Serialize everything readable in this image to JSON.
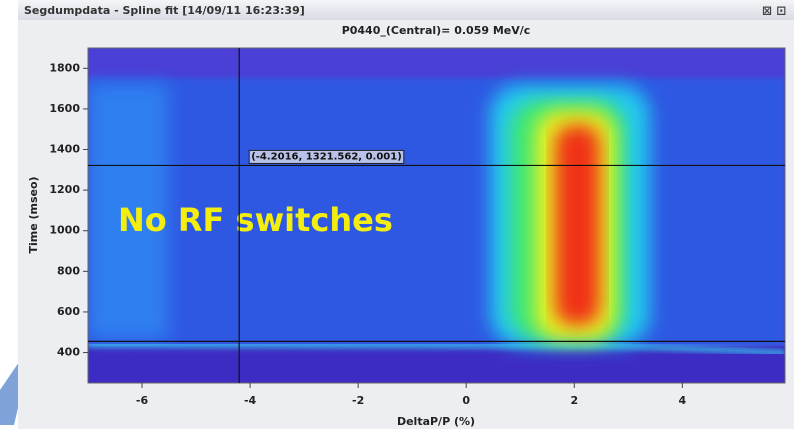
{
  "window_title": "Segdumpdata - Spline fit  [14/09/11 16:23:39]",
  "chart_data": {
    "type": "heatmap",
    "title": "P0440_(Central)= 0.059 MeV/c",
    "x_label": "DeltaP/P (%)",
    "y_label": "Time (mseo)",
    "xlim": [
      -7,
      5.9
    ],
    "xticks": [
      -6,
      -4,
      -2,
      0,
      2,
      4
    ],
    "ylim": [
      250,
      1900
    ],
    "yticks": [
      400,
      600,
      800,
      1000,
      1200,
      1400,
      1600,
      1800
    ],
    "cursor": {
      "x": -4.2016,
      "y": 1321.562,
      "label": "(-4.2016, 1321.562, 0.001)"
    },
    "hline_y": 455,
    "annotation": "No RF switches"
  }
}
